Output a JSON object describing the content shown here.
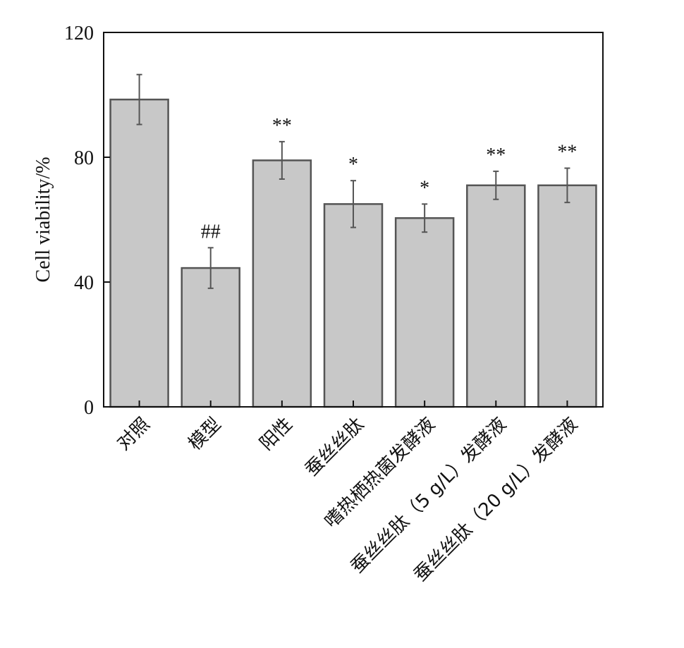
{
  "chart_data": {
    "type": "bar",
    "ylabel": "Cell viability/%",
    "xlabel": "",
    "ylim": [
      0,
      120
    ],
    "yticks": [
      0,
      40,
      80,
      120
    ],
    "grid": false,
    "categories": [
      "对照",
      "模型",
      "阳性",
      "蚕丝丝肽",
      "嗜热栖热菌发酵液",
      "蚕丝丝肽（5 g/L）发酵液",
      "蚕丝丝肽（20 g/L）发酵液"
    ],
    "values": [
      98.5,
      44.5,
      79,
      65,
      60.5,
      71,
      71
    ],
    "errors": [
      8,
      6.5,
      6,
      7.5,
      4.5,
      4.5,
      5.5
    ],
    "annotations": [
      "",
      "##",
      "**",
      "*",
      "*",
      "**",
      "**"
    ],
    "colors": {
      "bar_fill": "#c8c8c8",
      "bar_stroke": "#555555",
      "axis": "#111111"
    }
  }
}
